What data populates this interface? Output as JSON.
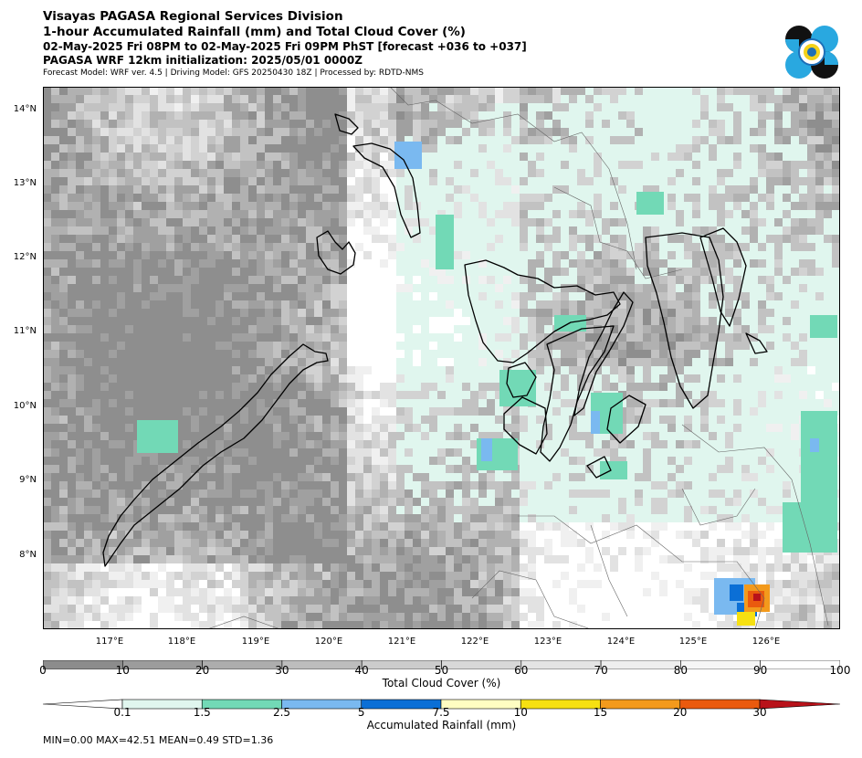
{
  "header": {
    "line1": "Visayas PAGASA Regional Services Division",
    "line2": "1-hour Accumulated Rainfall (mm) and Total Cloud Cover (%)",
    "line3": "02-May-2025 Fri 08PM to 02-May-2025 Fri 09PM PhST [forecast +036 to +037]",
    "line4": "PAGASA WRF 12km initialization: 2025/05/01 0000Z",
    "line5": "Forecast Model: WRF ver. 4.5 | Driving Model: GFS 20250430 18Z | Processed by: RDTD-NMS"
  },
  "map": {
    "lat_labels": [
      "14°N",
      "13°N",
      "12°N",
      "11°N",
      "10°N",
      "9°N",
      "8°N"
    ],
    "lon_labels": [
      "117°E",
      "118°E",
      "119°E",
      "120°E",
      "121°E",
      "122°E",
      "123°E",
      "124°E",
      "125°E",
      "126°E"
    ]
  },
  "cloud_cover": {
    "title": "Total Cloud Cover (%)",
    "ticks": [
      "0",
      "10",
      "20",
      "30",
      "40",
      "50",
      "60",
      "70",
      "80",
      "90",
      "100"
    ],
    "colors": [
      "#8c8c8c",
      "#9c9c9c",
      "#adadad",
      "#bdbdbd",
      "#cccccc",
      "#d8d8d8",
      "#e4e4e4",
      "#eeeeee",
      "#f6f6f6",
      "#ffffff"
    ]
  },
  "rainfall": {
    "title": "Accumulated Rainfall (mm)",
    "ticks": [
      "0.1",
      "1.5",
      "2.5",
      "5",
      "7.5",
      "10",
      "15",
      "20",
      "30"
    ],
    "colors": [
      "#e0f6ee",
      "#72d9b6",
      "#7ab9f0",
      "#0b6fd6",
      "#fffdc2",
      "#f6e012",
      "#f39a1c",
      "#ea5a0e"
    ],
    "under_color": "#ffffff",
    "over_color": "#b8121a"
  },
  "stats": "MIN=0.00   MAX=42.51   MEAN=0.49   STD=1.36"
}
